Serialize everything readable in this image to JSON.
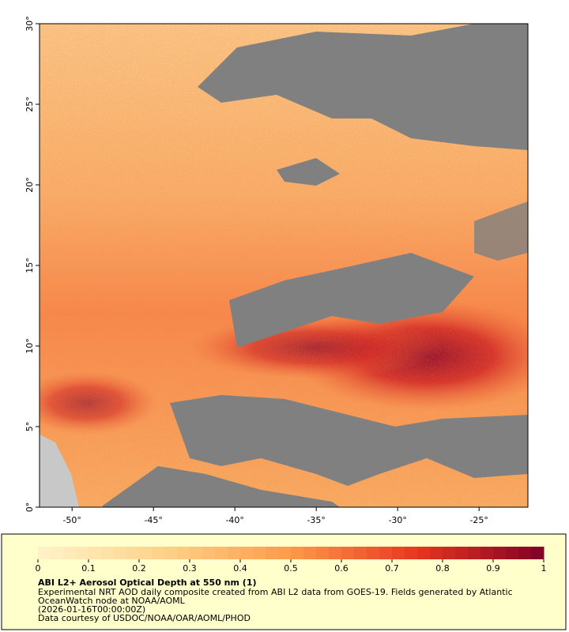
{
  "map": {
    "xlim": [
      -52,
      -22
    ],
    "ylim": [
      0,
      30
    ],
    "xticks": [
      {
        "value": -50,
        "label": "-50°"
      },
      {
        "value": -45,
        "label": "-45°"
      },
      {
        "value": -40,
        "label": "-40°"
      },
      {
        "value": -35,
        "label": "-35°"
      },
      {
        "value": -30,
        "label": "-30°"
      },
      {
        "value": -25,
        "label": "-25°"
      }
    ],
    "yticks": [
      {
        "value": 0,
        "label": "0°"
      },
      {
        "value": 5,
        "label": "5°"
      },
      {
        "value": 10,
        "label": "10°"
      },
      {
        "value": 15,
        "label": "15°"
      },
      {
        "value": 20,
        "label": "20°"
      },
      {
        "value": 25,
        "label": "25°"
      },
      {
        "value": 30,
        "label": "30°"
      }
    ]
  },
  "colorbar": {
    "lim": [
      0,
      1
    ],
    "ticks": [
      0,
      0.1,
      0.2,
      0.3,
      0.4,
      0.5,
      0.6,
      0.7,
      0.8,
      0.9,
      1
    ],
    "colors": [
      "#fff3c8",
      "#fed28a",
      "#fd9a4a",
      "#e8361f",
      "#800026"
    ]
  },
  "legend": {
    "title": "ABI L2+ Aerosol Optical Depth at 550 nm (1)",
    "lines": [
      "Experimental NRT AOD daily composite created from ABI L2 data from GOES-19. Fields generated by Atlantic",
      "OceanWatch node at NOAA/AOML",
      "(2026-01-16T00:00:00Z)",
      "Data courtesy of USDOC/NOAA/OAR/AOML/PHOD"
    ]
  }
}
